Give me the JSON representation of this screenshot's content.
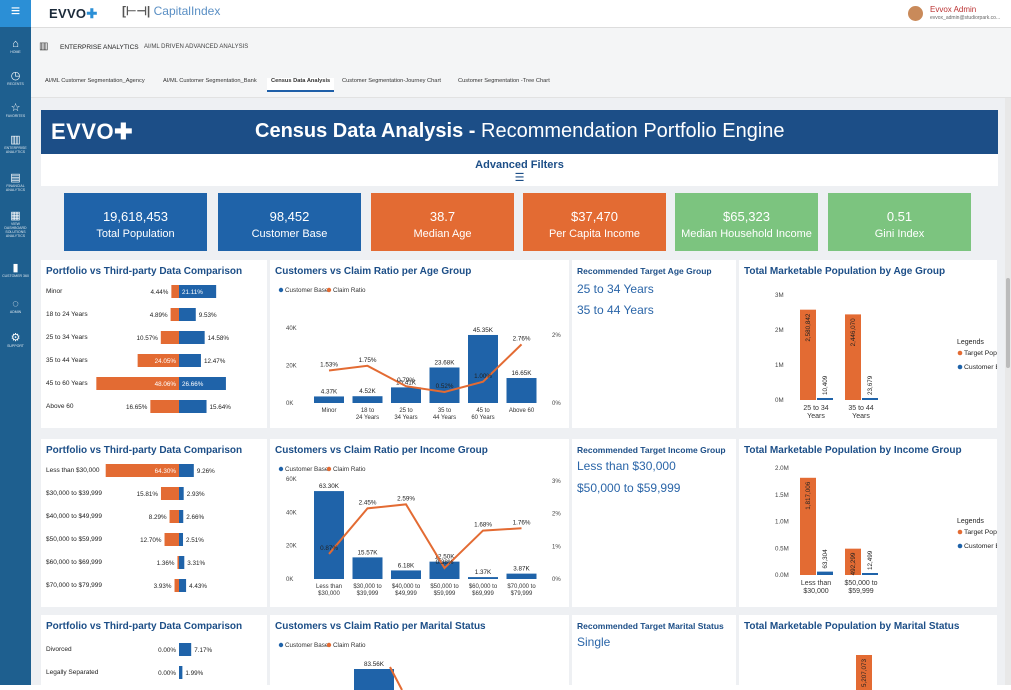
{
  "sidebar": {
    "menu_icon": "≡",
    "items": [
      {
        "label": "HOME",
        "icon": "⌂"
      },
      {
        "label": "RECENTS",
        "icon": "◷"
      },
      {
        "label": "FAVORITES",
        "icon": "☆"
      },
      {
        "label": "ENTERPRISE ANALYTICS",
        "icon": "▥"
      },
      {
        "label": "FINANCIAL ANALYTICS",
        "icon": "▤"
      },
      {
        "label": "VIEW DASHBOARD SOLUTIONS ANALYTICS",
        "icon": "▦"
      },
      {
        "label": "CUSTOMER 360",
        "icon": "▮"
      },
      {
        "label": "ADMIN",
        "icon": "◌"
      },
      {
        "label": "SUPPORT",
        "icon": "⚙"
      }
    ]
  },
  "topbar": {
    "brand": "EVVO",
    "brand_mark": "✚",
    "capital_bracket": "[⊢⊣|",
    "capital_name": "CapitalIndex",
    "user_name": "Evvox Admin",
    "user_email": "evvox_admin@studiorpark.co..."
  },
  "breadcrumb": {
    "section": "ENTERPRISE ANALYTICS",
    "subsection": "AI/ML DRIVEN ADVANCED ANALYSIS"
  },
  "tabs": [
    "AI/ML Customer Segmentation_Agency",
    "AI/ML Customer Segmentation_Bank",
    "Census Data Analysis",
    "Customer Segmentation-Journey Chart",
    "Customer Segmentation -Tree Chart"
  ],
  "banner": {
    "logo": "EVVO✚",
    "title_bold": "Census Data Analysis -",
    "title_rest": " Recommendation Portfolio Engine"
  },
  "filters": {
    "title": "Advanced Filters",
    "icon": "☰"
  },
  "colors": {
    "blue": "#1f63a9",
    "orange": "#e36b33",
    "green": "#7cc47f",
    "navy": "#1c4e87"
  },
  "kpis": [
    {
      "value": "19,618,453",
      "label": "Total Population",
      "color": "#1f63a9"
    },
    {
      "value": "98,452",
      "label": "Customer Base",
      "color": "#1f63a9"
    },
    {
      "value": "38.7",
      "label": "Median Age",
      "color": "#e36b33"
    },
    {
      "value": "$37,470",
      "label": "Per Capita Income",
      "color": "#e36b33"
    },
    {
      "value": "$65,323",
      "label": "Median Household Income",
      "color": "#7cc47f"
    },
    {
      "value": "0.51",
      "label": "Gini Index",
      "color": "#7cc47f"
    }
  ],
  "titles": {
    "pvt1": "Portfolio vs Third-party Data Comparison",
    "cvc1": "Customers vs Claim Ratio per Age Group",
    "rec1": "Recommended Target Age Group",
    "tmp1": "Total Marketable Population by Age Group",
    "pvt2": "Portfolio vs Third-party Data Comparison",
    "cvc2": "Customers vs Claim Ratio per Income Group",
    "rec2": "Recommended Target Income Group",
    "tmp2": "Total Marketable Population by Income Group",
    "pvt3": "Portfolio vs Third-party Data Comparison",
    "cvc3": "Customers vs Claim Ratio per Marital Status",
    "rec3": "Recommended Target Marital Status",
    "tmp3": "Total Marketable Population by Marital Status"
  },
  "recommendations": {
    "age": [
      "25 to 34 Years",
      "35 to 44 Years"
    ],
    "income": [
      "Less than $30,000",
      "$50,000 to $59,999"
    ],
    "marital": [
      "Single"
    ]
  },
  "chart_data": [
    {
      "id": "pvt_age",
      "type": "bar",
      "title": "Portfolio vs Third-party Data Comparison",
      "categories": [
        "Minor",
        "18 to 24 Years",
        "25 to 34 Years",
        "35 to 44 Years",
        "45 to 60 Years",
        "Above 60"
      ],
      "series": [
        {
          "name": "Portfolio",
          "values": [
            4.44,
            4.89,
            10.57,
            24.05,
            48.06,
            16.65
          ],
          "labels": [
            "4.44%",
            "4.89%",
            "10.57%",
            "24.05%",
            "48.06%",
            "16.65%"
          ]
        },
        {
          "name": "Third-party",
          "values": [
            21.11,
            9.53,
            14.58,
            12.47,
            26.66,
            15.64
          ],
          "labels": [
            "21.11%",
            "9.53%",
            "14.58%",
            "12.47%",
            "26.66%",
            "15.64%"
          ]
        }
      ]
    },
    {
      "id": "cvc_age",
      "type": "bar",
      "title": "Customers vs Claim Ratio per Age Group",
      "legend": [
        "Customer Base",
        "Claim Ratio"
      ],
      "categories": [
        "Minor",
        "18 to 24 Years",
        "25 to 34 Years",
        "35 to 44 Years",
        "45 to 60 Years",
        "Above 60"
      ],
      "series": [
        {
          "name": "Customer Base",
          "values": [
            4370,
            4520,
            10410,
            23680,
            45350,
            16650
          ],
          "labels": [
            "4.37K",
            "4.52K",
            "10.41K",
            "23.68K",
            "45.35K",
            "16.65K"
          ]
        },
        {
          "name": "Claim Ratio",
          "values": [
            1.53,
            1.75,
            0.79,
            0.52,
            1.0,
            2.76
          ],
          "labels": [
            "1.53%",
            "1.75%",
            "0.79%",
            "0.52%",
            "1.00%",
            "2.76%"
          ]
        }
      ],
      "yticks": [
        "40K",
        "20K",
        "0K"
      ],
      "y2ticks": [
        "2%",
        "0%"
      ],
      "ylim": [
        0,
        50000
      ],
      "y2lim": [
        0,
        3.2
      ]
    },
    {
      "id": "tmp_age",
      "type": "bar",
      "title": "Total Marketable Population by Age Group",
      "legend_title": "Legends",
      "legend": [
        "Target Population",
        "Customer Base"
      ],
      "categories": [
        "25 to 34 Years",
        "35 to 44 Years"
      ],
      "series": [
        {
          "name": "Target Population",
          "values": [
            2580842,
            2446070
          ],
          "labels": [
            "2,580,842",
            "2,446,070"
          ]
        },
        {
          "name": "Customer Base",
          "values": [
            10409,
            23679
          ],
          "labels": [
            "10,409",
            "23,679"
          ]
        }
      ],
      "yticks": [
        "3M",
        "2M",
        "1M",
        "0M"
      ],
      "ylim": [
        0,
        3000000
      ]
    },
    {
      "id": "pvt_income",
      "type": "bar",
      "title": "Portfolio vs Third-party Data Comparison",
      "categories": [
        "Less than $30,000",
        "$30,000 to $39,999",
        "$40,000 to $49,999",
        "$50,000 to $59,999",
        "$60,000 to $69,999",
        "$70,000 to $79,999"
      ],
      "series": [
        {
          "name": "Portfolio",
          "values": [
            64.3,
            15.81,
            8.29,
            12.7,
            1.36,
            3.93
          ],
          "labels": [
            "64.30%",
            "15.81%",
            "8.29%",
            "12.70%",
            "1.36%",
            "3.93%"
          ]
        },
        {
          "name": "Third-party",
          "values": [
            9.26,
            2.93,
            2.66,
            2.51,
            3.31,
            4.43
          ],
          "labels": [
            "9.26%",
            "2.93%",
            "2.66%",
            "2.51%",
            "3.31%",
            "4.43%"
          ]
        }
      ]
    },
    {
      "id": "cvc_income",
      "type": "bar",
      "title": "Customers vs Claim Ratio per Income Group",
      "legend": [
        "Customer Base",
        "Claim Ratio"
      ],
      "categories": [
        "Less than $30,000",
        "$30,000 to $39,999",
        "$40,000 to $49,999",
        "$50,000 to $59,999",
        "$60,000 to $69,999",
        "$70,000 to $79,999"
      ],
      "series": [
        {
          "name": "Customer Base",
          "values": [
            63300,
            15570,
            6180,
            12500,
            1370,
            3870
          ],
          "labels": [
            "63.30K",
            "15.57K",
            "6.18K",
            "12.50K",
            "1.37K",
            "3.87K"
          ]
        },
        {
          "name": "Claim Ratio",
          "values": [
            0.87,
            2.45,
            2.59,
            0.38,
            1.68,
            1.76
          ],
          "labels": [
            "0.87%",
            "2.45%",
            "2.59%",
            "0.38%",
            "1.68%",
            "1.76%"
          ]
        }
      ],
      "yticks": [
        "60K",
        "40K",
        "20K",
        "0K"
      ],
      "y2ticks": [
        "3%",
        "2%",
        "1%",
        "0%"
      ],
      "ylim": [
        0,
        72000
      ],
      "y2lim": [
        0,
        3.4
      ]
    },
    {
      "id": "tmp_income",
      "type": "bar",
      "title": "Total Marketable Population by Income Group",
      "legend_title": "Legends",
      "legend": [
        "Target Population",
        "Customer Base"
      ],
      "categories": [
        "Less than $30,000",
        "$50,000 to $59,999"
      ],
      "series": [
        {
          "name": "Target Population",
          "values": [
            1817006,
            492299
          ],
          "labels": [
            "1,817,006",
            "492,299"
          ]
        },
        {
          "name": "Customer Base",
          "values": [
            63304,
            12499
          ],
          "labels": [
            "63,304",
            "12,499"
          ]
        }
      ],
      "yticks": [
        "2.0M",
        "1.5M",
        "1.0M",
        "0.5M",
        "0.0M"
      ],
      "ylim": [
        0,
        2000000
      ]
    },
    {
      "id": "pvt_marital",
      "type": "bar",
      "title": "Portfolio vs Third-party Data Comparison",
      "categories": [
        "Divorced",
        "Legally Separated"
      ],
      "series": [
        {
          "name": "Portfolio",
          "values": [
            0.0,
            0.0
          ],
          "labels": [
            "0.00%",
            "0.00%"
          ]
        },
        {
          "name": "Third-party",
          "values": [
            7.17,
            1.99
          ],
          "labels": [
            "7.17%",
            "1.99%"
          ]
        }
      ]
    },
    {
      "id": "cvc_marital",
      "type": "bar",
      "title": "Customers vs Claim Ratio per Marital Status",
      "legend": [
        "Customer Base",
        "Claim Ratio"
      ],
      "first_bar_label": "83.56K",
      "yticks": [
        "80K"
      ],
      "y2ticks": [
        "1.2%"
      ]
    },
    {
      "id": "tmp_marital",
      "type": "bar",
      "title": "Total Marketable Population by Marital Status",
      "first_bar_label": "5,207,073",
      "yticks": [
        "10M"
      ]
    }
  ]
}
